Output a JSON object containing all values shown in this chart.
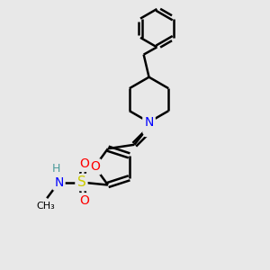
{
  "background_color": "#e8e8e8",
  "bond_color": "#000000",
  "bond_width": 1.8,
  "atom_colors": {
    "N": "#0000FF",
    "O": "#FF0000",
    "S": "#CCCC00",
    "H": "#4a9a9a",
    "C": "#000000"
  },
  "font_size": 9,
  "figsize": [
    3.0,
    3.0
  ],
  "dpi": 100
}
